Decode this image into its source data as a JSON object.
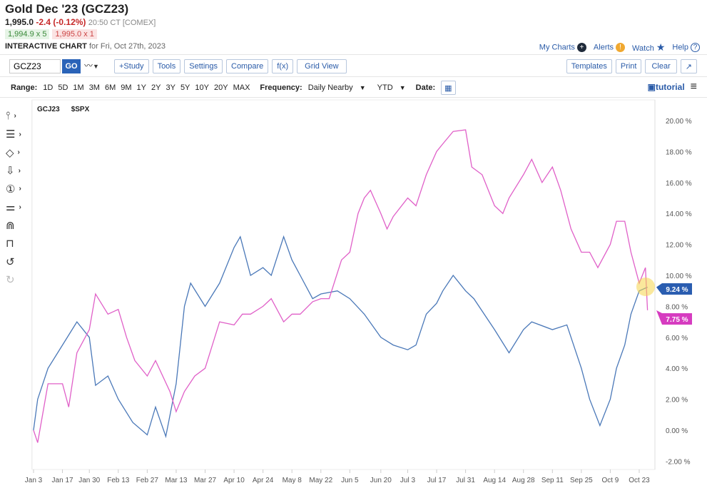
{
  "header": {
    "title": "Gold Dec '23 (GCZ23)",
    "last": "1,995.0",
    "change": "-2.4 (-0.12%)",
    "time": "20:50 CT [COMEX]",
    "bid": "1,994.9 x 5",
    "ask": "1,995.0 x 1",
    "chart_label": "INTERACTIVE CHART",
    "chart_date": "for Fri, Oct 27th, 2023"
  },
  "links": {
    "my_charts": "My Charts",
    "alerts": "Alerts",
    "watch": "Watch",
    "help": "Help"
  },
  "toolbar": {
    "symbol": "GCZ23",
    "go": "GO",
    "study": "+Study",
    "tools": "Tools",
    "settings": "Settings",
    "compare": "Compare",
    "fx": "f(x)",
    "grid_view": "Grid View",
    "templates": "Templates",
    "print": "Print",
    "clear": "Clear"
  },
  "range": {
    "label": "Range:",
    "options": [
      "1D",
      "5D",
      "1M",
      "3M",
      "6M",
      "9M",
      "1Y",
      "2Y",
      "3Y",
      "5Y",
      "10Y",
      "20Y",
      "MAX"
    ],
    "frequency_label": "Frequency:",
    "frequency": "Daily Nearby",
    "period": "YTD",
    "date_label": "Date:",
    "tutorial": "tutorial"
  },
  "colors": {
    "gold": "#4a78b8",
    "spx": "#e060c8",
    "accent": "#2a63b8"
  },
  "chart_data": {
    "type": "line",
    "legend": [
      "GCJ23",
      "$SPX"
    ],
    "ylabel": "%",
    "ylim": [
      -2.5,
      21
    ],
    "yticks": [
      20,
      18,
      16,
      14,
      12,
      10,
      8,
      6,
      4,
      2,
      0,
      -2
    ],
    "ytick_labels": [
      "20.00 %",
      "18.00 %",
      "16.00 %",
      "14.00 %",
      "12.00 %",
      "10.00 %",
      "8.00 %",
      "6.00 %",
      "4.00 %",
      "2.00 %",
      "0.00 %",
      "-2.00 %"
    ],
    "xticks": [
      "01-03",
      "01-17",
      "01-30",
      "02-13",
      "02-27",
      "03-13",
      "03-27",
      "04-10",
      "04-24",
      "05-08",
      "05-22",
      "06-05",
      "06-20",
      "07-03",
      "07-17",
      "07-31",
      "08-14",
      "08-28",
      "09-11",
      "09-25",
      "10-09",
      "10-23"
    ],
    "xtick_labels": [
      "Jan 3",
      "Jan 17",
      "Jan 30",
      "Feb 13",
      "Feb 27",
      "Mar 13",
      "Mar 27",
      "Apr 10",
      "Apr 24",
      "May 8",
      "May 22",
      "Jun 5",
      "Jun 20",
      "Jul 3",
      "Jul 17",
      "Jul 31",
      "Aug 14",
      "Aug 28",
      "Sep 11",
      "Sep 25",
      "Oct 9",
      "Oct 23"
    ],
    "series": [
      {
        "name": "GCJ23",
        "last_label": "9.24 %",
        "x": [
          "01-03",
          "01-05",
          "01-10",
          "01-17",
          "01-24",
          "01-30",
          "02-02",
          "02-08",
          "02-13",
          "02-20",
          "02-27",
          "03-03",
          "03-08",
          "03-13",
          "03-17",
          "03-20",
          "03-27",
          "04-03",
          "04-10",
          "04-13",
          "04-18",
          "04-24",
          "04-28",
          "05-04",
          "05-08",
          "05-12",
          "05-18",
          "05-22",
          "05-30",
          "06-05",
          "06-12",
          "06-20",
          "06-26",
          "07-03",
          "07-07",
          "07-12",
          "07-17",
          "07-20",
          "07-25",
          "07-31",
          "08-04",
          "08-14",
          "08-21",
          "08-28",
          "09-01",
          "09-11",
          "09-18",
          "09-25",
          "09-29",
          "10-04",
          "10-09",
          "10-12",
          "10-16",
          "10-19",
          "10-23",
          "10-27"
        ],
        "values": [
          0,
          2,
          4,
          5.5,
          7,
          6,
          2.9,
          3.5,
          2,
          0.5,
          -0.3,
          1.5,
          -0.4,
          3,
          8,
          9.5,
          8,
          9.5,
          11.8,
          12.5,
          10,
          10.5,
          10,
          12.5,
          11,
          10,
          8.5,
          8.8,
          9,
          8.5,
          7.5,
          6,
          5.5,
          5.2,
          5.5,
          7.5,
          8.2,
          9,
          10,
          9,
          8.5,
          6.5,
          5,
          6.5,
          7,
          6.5,
          6.8,
          4,
          2,
          0.3,
          2,
          4,
          5.5,
          7.5,
          9,
          9.24
        ]
      },
      {
        "name": "$SPX",
        "last_label": "7.75 %",
        "x": [
          "01-03",
          "01-05",
          "01-10",
          "01-17",
          "01-20",
          "01-24",
          "01-30",
          "02-02",
          "02-08",
          "02-13",
          "02-17",
          "02-21",
          "02-27",
          "03-03",
          "03-10",
          "03-13",
          "03-17",
          "03-22",
          "03-27",
          "04-03",
          "04-10",
          "04-14",
          "04-18",
          "04-24",
          "04-28",
          "05-04",
          "05-08",
          "05-12",
          "05-18",
          "05-22",
          "05-26",
          "06-01",
          "06-05",
          "06-09",
          "06-12",
          "06-15",
          "06-20",
          "06-23",
          "06-26",
          "07-03",
          "07-07",
          "07-12",
          "07-17",
          "07-20",
          "07-25",
          "07-31",
          "08-03",
          "08-08",
          "08-14",
          "08-18",
          "08-21",
          "08-28",
          "09-01",
          "09-06",
          "09-11",
          "09-15",
          "09-20",
          "09-25",
          "09-29",
          "10-03",
          "10-09",
          "10-12",
          "10-16",
          "10-19",
          "10-23",
          "10-26",
          "10-27"
        ],
        "values": [
          0,
          -0.8,
          3,
          3,
          1.5,
          5,
          6.5,
          8.8,
          7.5,
          7.8,
          6,
          4.5,
          3.5,
          4.5,
          2.5,
          1.2,
          2.5,
          3.5,
          4,
          7,
          6.8,
          7.5,
          7.5,
          8,
          8.5,
          7,
          7.5,
          7.5,
          8.3,
          8.5,
          8.5,
          11,
          11.5,
          14,
          15,
          15.5,
          14,
          13,
          13.8,
          15,
          14.5,
          16.5,
          18,
          18.5,
          19.3,
          19.4,
          17,
          16.5,
          14.5,
          14,
          15,
          16.5,
          17.5,
          16,
          17,
          15.5,
          13,
          11.5,
          11.5,
          10.5,
          12,
          13.5,
          13.5,
          11.5,
          9.5,
          10.5,
          7.75
        ]
      }
    ]
  }
}
